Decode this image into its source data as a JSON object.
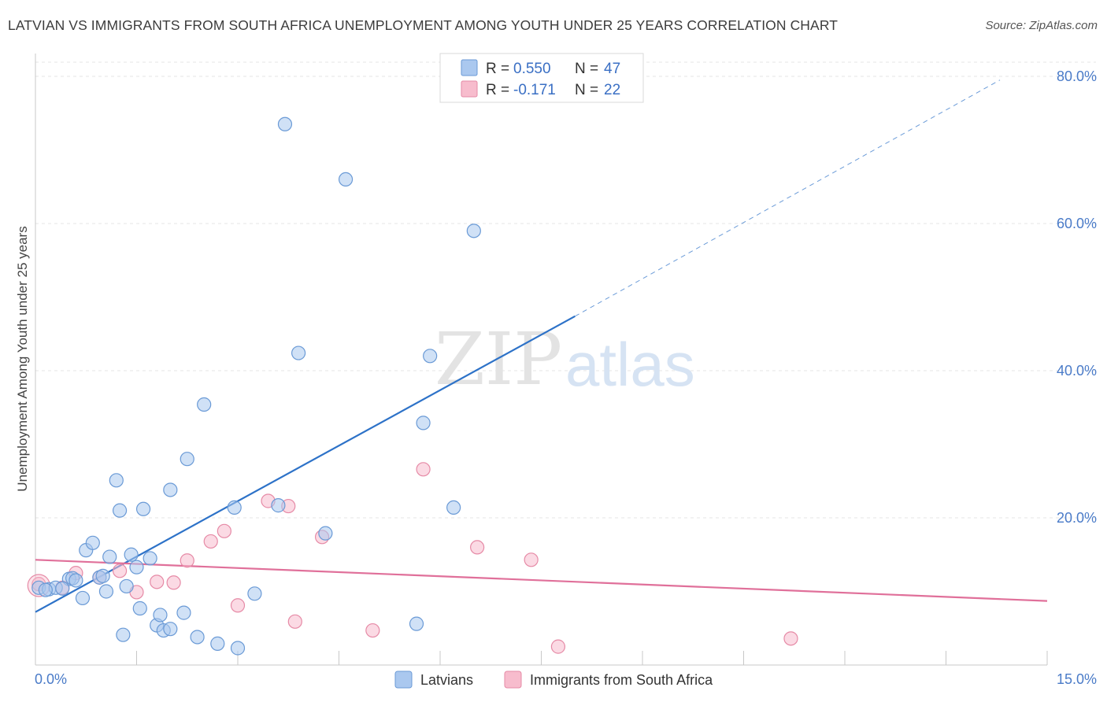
{
  "title": "LATVIAN VS IMMIGRANTS FROM SOUTH AFRICA UNEMPLOYMENT AMONG YOUTH UNDER 25 YEARS CORRELATION CHART",
  "source": "Source: ZipAtlas.com",
  "watermark": {
    "zip": "ZIP",
    "atlas": "atlas"
  },
  "legend": {
    "r_label": "R =",
    "n_label": "N =",
    "series": [
      {
        "r": "0.550",
        "n": "47"
      },
      {
        "r": "-0.171",
        "n": "22"
      }
    ]
  },
  "colors": {
    "latvians_fill": "#aac8ef",
    "latvians_stroke": "#6a9ad6",
    "latvians_line": "#2d72c8",
    "sa_fill": "#f7bccd",
    "sa_stroke": "#e68aa6",
    "sa_line": "#e0709a"
  },
  "chart_data": {
    "type": "scatter",
    "title": "LATVIAN VS IMMIGRANTS FROM SOUTH AFRICA UNEMPLOYMENT AMONG YOUTH UNDER 25 YEARS CORRELATION CHART",
    "xlabel": "",
    "ylabel": "Unemployment Among Youth under 25 years",
    "xlim": [
      0,
      15
    ],
    "ylim": [
      0,
      80
    ],
    "x_tick_labels": [
      "0.0%",
      "15.0%"
    ],
    "y_ticks": [
      20,
      40,
      60,
      80
    ],
    "y_tick_labels": [
      "20.0%",
      "40.0%",
      "60.0%",
      "80.0%"
    ],
    "grid": true,
    "legend_position": "top-center",
    "series": [
      {
        "name": "Latvians",
        "points": [
          [
            0.05,
            10.5
          ],
          [
            0.2,
            10.3
          ],
          [
            0.3,
            10.5
          ],
          [
            0.5,
            11.7
          ],
          [
            0.55,
            11.8
          ],
          [
            0.6,
            11.5
          ],
          [
            0.7,
            9.1
          ],
          [
            0.75,
            15.6
          ],
          [
            0.85,
            16.6
          ],
          [
            0.95,
            11.9
          ],
          [
            1.0,
            12.1
          ],
          [
            1.05,
            10.0
          ],
          [
            1.1,
            14.7
          ],
          [
            1.2,
            25.1
          ],
          [
            1.25,
            21.0
          ],
          [
            1.3,
            4.1
          ],
          [
            1.35,
            10.7
          ],
          [
            1.42,
            15.0
          ],
          [
            1.5,
            13.3
          ],
          [
            1.55,
            7.7
          ],
          [
            1.6,
            21.2
          ],
          [
            1.7,
            14.5
          ],
          [
            1.8,
            5.4
          ],
          [
            1.85,
            6.8
          ],
          [
            1.9,
            4.7
          ],
          [
            2.0,
            4.9
          ],
          [
            2.0,
            23.8
          ],
          [
            2.2,
            7.1
          ],
          [
            2.25,
            28.0
          ],
          [
            2.4,
            3.8
          ],
          [
            2.5,
            35.4
          ],
          [
            2.7,
            2.9
          ],
          [
            2.95,
            21.4
          ],
          [
            3.0,
            2.3
          ],
          [
            3.25,
            9.7
          ],
          [
            3.6,
            21.7
          ],
          [
            3.7,
            73.5
          ],
          [
            3.9,
            42.4
          ],
          [
            4.3,
            17.9
          ],
          [
            4.6,
            66.0
          ],
          [
            5.65,
            5.6
          ],
          [
            5.75,
            32.9
          ],
          [
            5.85,
            42.0
          ],
          [
            6.2,
            21.4
          ],
          [
            6.5,
            59.0
          ],
          [
            0.15,
            10.2
          ],
          [
            0.4,
            10.4
          ]
        ],
        "trend": {
          "x_start": 0.0,
          "y_start": 7.2,
          "x_solid_end": 8.0,
          "y_solid_end": 47.4,
          "x_end": 14.3,
          "y_end": 79.5
        }
      },
      {
        "name": "Immigrants from South Africa",
        "points": [
          [
            0.05,
            11.0
          ],
          [
            0.4,
            10.5
          ],
          [
            0.6,
            12.5
          ],
          [
            0.95,
            11.9
          ],
          [
            1.25,
            12.8
          ],
          [
            1.5,
            9.9
          ],
          [
            1.8,
            11.3
          ],
          [
            2.05,
            11.2
          ],
          [
            2.25,
            14.2
          ],
          [
            2.6,
            16.8
          ],
          [
            2.8,
            18.2
          ],
          [
            3.0,
            8.1
          ],
          [
            3.45,
            22.3
          ],
          [
            3.75,
            21.6
          ],
          [
            3.85,
            5.9
          ],
          [
            4.25,
            17.4
          ],
          [
            5.0,
            4.7
          ],
          [
            5.75,
            26.6
          ],
          [
            6.55,
            16.0
          ],
          [
            7.35,
            14.3
          ],
          [
            7.75,
            2.5
          ],
          [
            11.2,
            3.6
          ]
        ],
        "trend": {
          "x_start": 0.0,
          "y_start": 14.3,
          "x_end": 15.0,
          "y_end": 8.7
        }
      }
    ]
  },
  "bottom_legend": [
    {
      "label": "Latvians"
    },
    {
      "label": "Immigrants from South Africa"
    }
  ]
}
